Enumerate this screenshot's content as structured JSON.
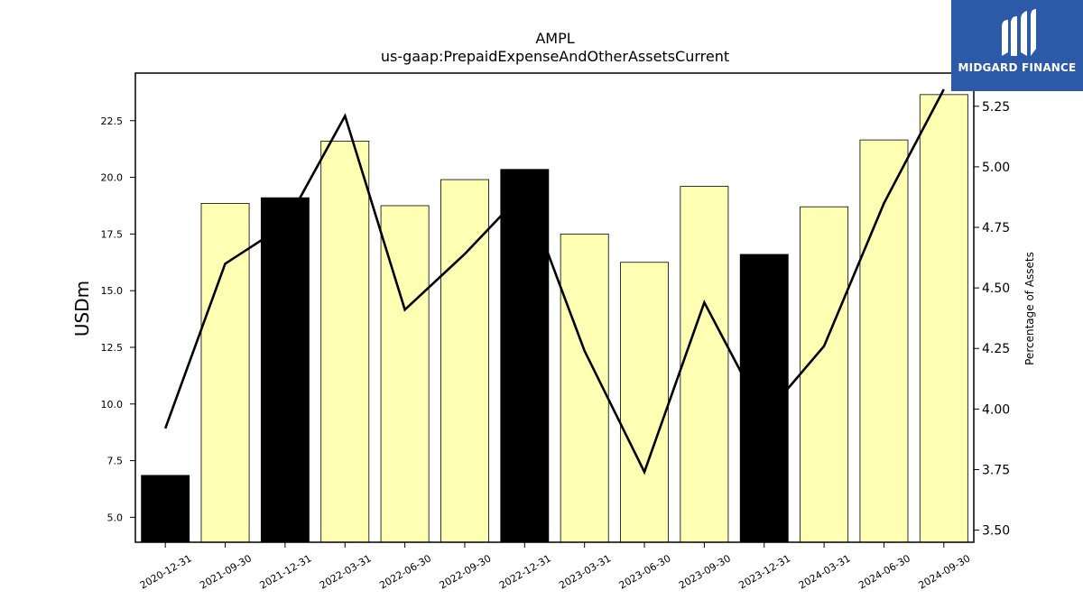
{
  "chart_data": {
    "type": "bar",
    "title": "AMPL",
    "subtitle": "us-gaap:PrepaidExpenseAndOtherAssetsCurrent",
    "ylabel": "USDm",
    "y2label": "Percentage of Assets",
    "categories": [
      "2020-12-31",
      "2021-09-30",
      "2021-12-31",
      "2022-03-31",
      "2022-06-30",
      "2022-09-30",
      "2022-12-31",
      "2023-03-31",
      "2023-06-30",
      "2023-09-30",
      "2023-12-31",
      "2024-03-31",
      "2024-06-30",
      "2024-09-30"
    ],
    "series": [
      {
        "values": [
          6.85,
          18.85,
          19.1,
          21.6,
          18.75,
          19.9,
          20.35,
          17.5,
          16.25,
          19.6,
          16.6,
          18.7,
          21.65,
          23.65
        ],
        "axis": "left",
        "kind": "bar"
      },
      {
        "values": [
          3.92,
          4.6,
          4.76,
          5.21,
          4.41,
          4.64,
          4.9,
          4.24,
          3.74,
          4.44,
          3.97,
          4.26,
          4.85,
          5.32
        ],
        "axis": "right",
        "kind": "line"
      }
    ],
    "bar_colors": {
      "annual": "#000000",
      "quarterly": "#ffffb3"
    },
    "annual_indices": [
      0,
      2,
      6,
      10
    ],
    "ylim": [
      3.9,
      24.6
    ],
    "y2lim": [
      3.45,
      5.387
    ],
    "yticks": [
      "5.0",
      "7.5",
      "10.0",
      "12.5",
      "15.0",
      "17.5",
      "20.0",
      "22.5"
    ],
    "y2ticks": [
      "3.50",
      "3.75",
      "4.00",
      "4.25",
      "4.50",
      "4.75",
      "5.00",
      "5.25"
    ],
    "grid": false,
    "legend": "none"
  },
  "logo": {
    "text": "MIDGARD FINANCE",
    "color": "#2d5aa8"
  }
}
